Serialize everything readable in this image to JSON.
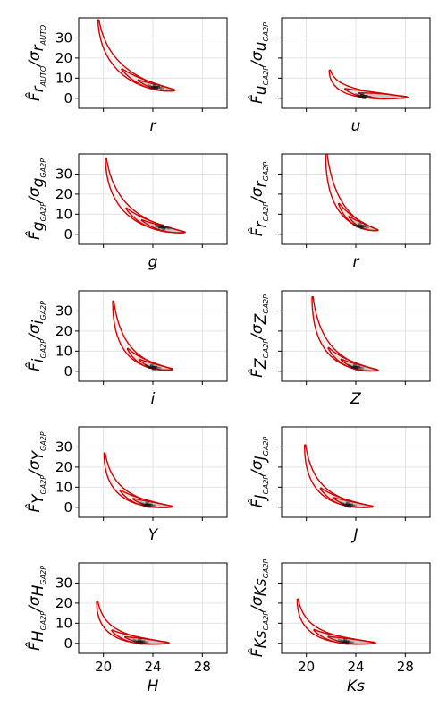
{
  "chart_data": [
    {
      "type": "heatmap",
      "xlabel": "r",
      "y_label": {
        "num_letter": "F",
        "num_sub": "r",
        "num_subsub": "AUTO",
        "den_sub": "r",
        "den_subsub": "AUTO"
      },
      "xlim": [
        18,
        30
      ],
      "ylim": [
        -5,
        40
      ],
      "xticks": [
        20,
        24,
        28
      ],
      "yticks": [
        0,
        10,
        20,
        30
      ],
      "show_xticklabels": false,
      "show_yticklabels": true,
      "contour_peak": {
        "x": 19.6,
        "y": 39
      },
      "contour_knee": {
        "x": 22.8,
        "y": 7
      },
      "contour_tail": {
        "x": 25.8,
        "y": 4
      },
      "density_peak": {
        "x": 24.2,
        "y": 5.5
      }
    },
    {
      "type": "heatmap",
      "xlabel": "u",
      "y_label": {
        "num_letter": "F",
        "num_sub": "u",
        "num_subsub": "GA2P",
        "den_sub": "u",
        "den_subsub": "GA2P"
      },
      "xlim": [
        18,
        30
      ],
      "ylim": [
        -5,
        40
      ],
      "xticks": [
        20,
        24,
        28
      ],
      "yticks": [
        0,
        10,
        20,
        30
      ],
      "show_xticklabels": false,
      "show_yticklabels": false,
      "contour_peak": {
        "x": 21.9,
        "y": 14
      },
      "contour_knee": {
        "x": 23.6,
        "y": 2
      },
      "contour_tail": {
        "x": 28.2,
        "y": 0.5
      },
      "density_peak": {
        "x": 24.6,
        "y": 1
      }
    },
    {
      "type": "heatmap",
      "xlabel": "g",
      "y_label": {
        "num_letter": "F",
        "num_sub": "g",
        "num_subsub": "GA2P",
        "den_sub": "g",
        "den_subsub": "GA2P"
      },
      "xlim": [
        18,
        30
      ],
      "ylim": [
        -5,
        40
      ],
      "xticks": [
        20,
        24,
        28
      ],
      "yticks": [
        0,
        10,
        20,
        30
      ],
      "show_xticklabels": false,
      "show_yticklabels": true,
      "contour_peak": {
        "x": 20.2,
        "y": 38
      },
      "contour_knee": {
        "x": 22.8,
        "y": 6
      },
      "contour_tail": {
        "x": 26.6,
        "y": 1
      },
      "density_peak": {
        "x": 24.8,
        "y": 3.5
      }
    },
    {
      "type": "heatmap",
      "xlabel": "r",
      "y_label": {
        "num_letter": "F",
        "num_sub": "r",
        "num_subsub": "GA2P",
        "den_sub": "r",
        "den_subsub": "GA2P"
      },
      "xlim": [
        18,
        30
      ],
      "ylim": [
        -5,
        40
      ],
      "xticks": [
        20,
        24,
        28
      ],
      "yticks": [
        0,
        10,
        20,
        30
      ],
      "show_xticklabels": false,
      "show_yticklabels": false,
      "contour_peak": {
        "x": 21.6,
        "y": 42
      },
      "contour_knee": {
        "x": 23.2,
        "y": 8
      },
      "contour_tail": {
        "x": 25.8,
        "y": 2
      },
      "density_peak": {
        "x": 24.4,
        "y": 4
      }
    },
    {
      "type": "heatmap",
      "xlabel": "i",
      "y_label": {
        "num_letter": "F",
        "num_sub": "i",
        "num_subsub": "GA2P",
        "den_sub": "i",
        "den_subsub": "GA2P"
      },
      "xlim": [
        18,
        30
      ],
      "ylim": [
        -5,
        40
      ],
      "xticks": [
        20,
        24,
        28
      ],
      "yticks": [
        0,
        10,
        20,
        30
      ],
      "show_xticklabels": false,
      "show_yticklabels": true,
      "contour_peak": {
        "x": 20.8,
        "y": 35
      },
      "contour_knee": {
        "x": 22.6,
        "y": 4
      },
      "contour_tail": {
        "x": 25.6,
        "y": 1
      },
      "density_peak": {
        "x": 24.0,
        "y": 2
      }
    },
    {
      "type": "heatmap",
      "xlabel": "Z",
      "y_label": {
        "num_letter": "F",
        "num_sub": "Z",
        "num_subsub": "GA2P",
        "den_sub": "Z",
        "den_subsub": "GA2P"
      },
      "xlim": [
        18,
        30
      ],
      "ylim": [
        -5,
        40
      ],
      "xticks": [
        20,
        24,
        28
      ],
      "yticks": [
        0,
        10,
        20,
        30
      ],
      "show_xticklabels": false,
      "show_yticklabels": false,
      "contour_peak": {
        "x": 20.5,
        "y": 37
      },
      "contour_knee": {
        "x": 22.5,
        "y": 4
      },
      "contour_tail": {
        "x": 25.8,
        "y": 0.5
      },
      "density_peak": {
        "x": 24.0,
        "y": 2
      }
    },
    {
      "type": "heatmap",
      "xlabel": "Y",
      "y_label": {
        "num_letter": "F",
        "num_sub": "Y",
        "num_subsub": "GA2P",
        "den_sub": "Y",
        "den_subsub": "GA2P"
      },
      "xlim": [
        18,
        30
      ],
      "ylim": [
        -5,
        40
      ],
      "xticks": [
        20,
        24,
        28
      ],
      "yticks": [
        0,
        10,
        20,
        30
      ],
      "show_xticklabels": false,
      "show_yticklabels": true,
      "contour_peak": {
        "x": 20.1,
        "y": 27
      },
      "contour_knee": {
        "x": 22.0,
        "y": 3
      },
      "contour_tail": {
        "x": 25.6,
        "y": 0.3
      },
      "density_peak": {
        "x": 23.6,
        "y": 1.2
      }
    },
    {
      "type": "heatmap",
      "xlabel": "J",
      "y_label": {
        "num_letter": "F",
        "num_sub": "J",
        "num_subsub": "GA2P",
        "den_sub": "J",
        "den_subsub": "GA2P"
      },
      "xlim": [
        18,
        30
      ],
      "ylim": [
        -5,
        40
      ],
      "xticks": [
        20,
        24,
        28
      ],
      "yticks": [
        0,
        10,
        20,
        30
      ],
      "show_xticklabels": false,
      "show_yticklabels": false,
      "contour_peak": {
        "x": 19.9,
        "y": 31
      },
      "contour_knee": {
        "x": 21.8,
        "y": 3
      },
      "contour_tail": {
        "x": 25.4,
        "y": 0.3
      },
      "density_peak": {
        "x": 23.4,
        "y": 1.2
      }
    },
    {
      "type": "heatmap",
      "xlabel": "H",
      "y_label": {
        "num_letter": "F",
        "num_sub": "H",
        "num_subsub": "GA2P",
        "den_sub": "H",
        "den_subsub": "GA2P"
      },
      "xlim": [
        18,
        30
      ],
      "ylim": [
        -5,
        40
      ],
      "xticks": [
        20,
        24,
        28
      ],
      "yticks": [
        0,
        10,
        20,
        30
      ],
      "show_xticklabels": true,
      "show_yticklabels": true,
      "contour_peak": {
        "x": 19.5,
        "y": 21
      },
      "contour_knee": {
        "x": 21.2,
        "y": 2
      },
      "contour_tail": {
        "x": 25.3,
        "y": 0.2
      },
      "density_peak": {
        "x": 23.0,
        "y": 0.8
      }
    },
    {
      "type": "heatmap",
      "xlabel": "Ks",
      "y_label": {
        "num_letter": "F",
        "num_sub": "Ks",
        "num_subsub": "GA2P",
        "den_sub": "Ks",
        "den_subsub": "GA2P"
      },
      "xlim": [
        18,
        30
      ],
      "ylim": [
        -5,
        40
      ],
      "xticks": [
        20,
        24,
        28
      ],
      "yticks": [
        0,
        10,
        20,
        30
      ],
      "show_xticklabels": true,
      "show_yticklabels": false,
      "contour_peak": {
        "x": 19.3,
        "y": 22
      },
      "contour_knee": {
        "x": 21.2,
        "y": 2
      },
      "contour_tail": {
        "x": 25.6,
        "y": 0.2
      },
      "density_peak": {
        "x": 23.2,
        "y": 0.8
      }
    }
  ],
  "colors": {
    "contour": "#d40000",
    "grid": "#dddddd",
    "density_dark": "#1a1a1a",
    "background": "#ffffff"
  }
}
